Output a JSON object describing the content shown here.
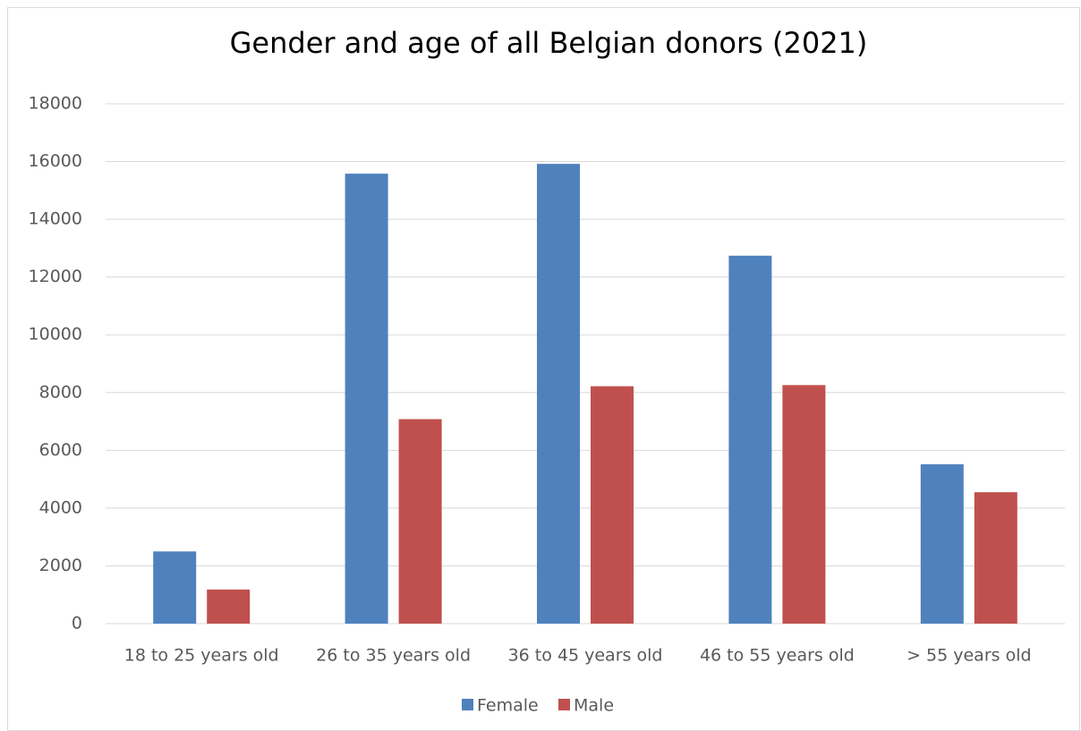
{
  "chart_data": {
    "type": "bar",
    "title": "Gender and age of all Belgian donors (2021)",
    "categories": [
      "18 to 25 years old",
      "26 to 35 years old",
      "36 to 45 years old",
      "46 to 55 years old",
      "> 55 years old"
    ],
    "series": [
      {
        "name": "Female",
        "color": "#4f81bd",
        "values": [
          2500,
          15580,
          15920,
          12740,
          5520
        ]
      },
      {
        "name": "Male",
        "color": "#c0504d",
        "values": [
          1180,
          7080,
          8220,
          8260,
          4550
        ]
      }
    ],
    "ylim": [
      0,
      18000
    ],
    "yticks": [
      0,
      2000,
      4000,
      6000,
      8000,
      10000,
      12000,
      14000,
      16000,
      18000
    ],
    "grid": true,
    "legend": "bottom"
  }
}
